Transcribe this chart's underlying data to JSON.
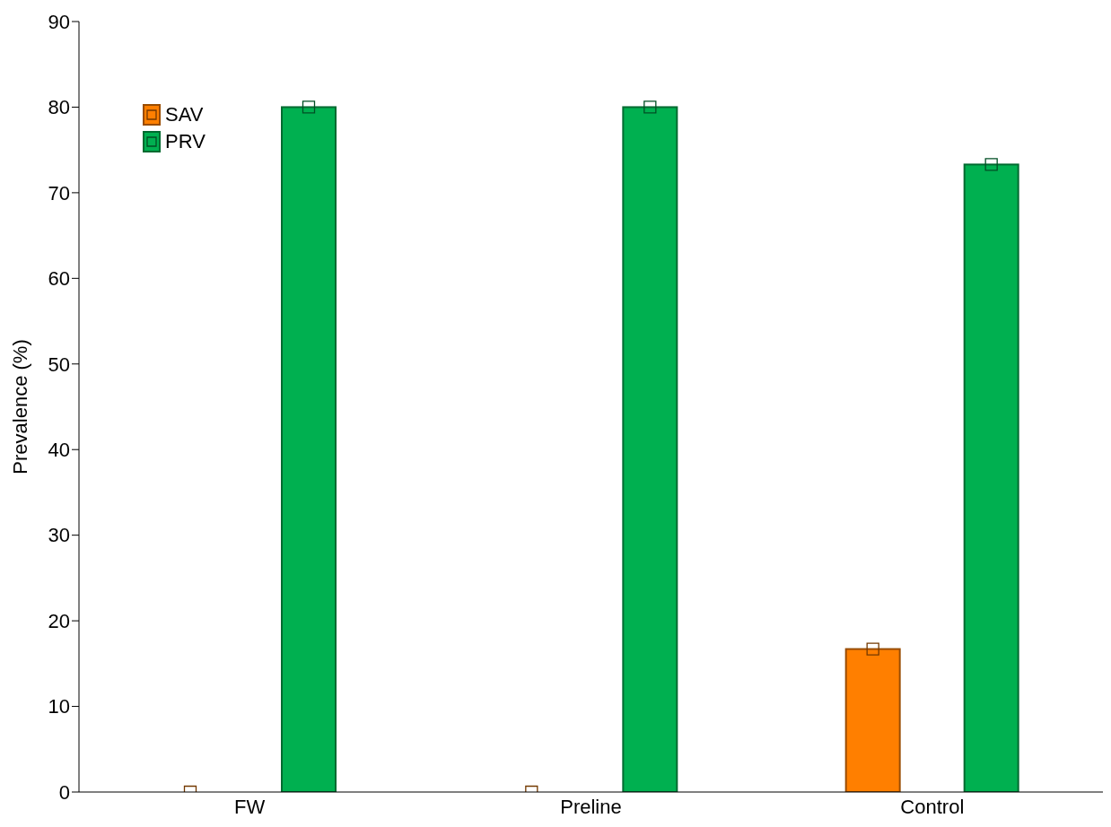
{
  "chart_data": {
    "type": "bar",
    "ylabel": "Prevalence (%)",
    "categories": [
      "FW",
      "Preline",
      "Control"
    ],
    "series": [
      {
        "name": "SAV",
        "color": "#ff7f00",
        "values": [
          0,
          0,
          16.7
        ]
      },
      {
        "name": "PRV",
        "color": "#00b050",
        "values": [
          80,
          80,
          73.3
        ]
      }
    ],
    "ylim": [
      0,
      90
    ],
    "yticks": [
      0,
      10,
      20,
      30,
      40,
      50,
      60,
      70,
      80,
      90
    ],
    "grid": false,
    "legend": "top left",
    "marker": "square"
  }
}
